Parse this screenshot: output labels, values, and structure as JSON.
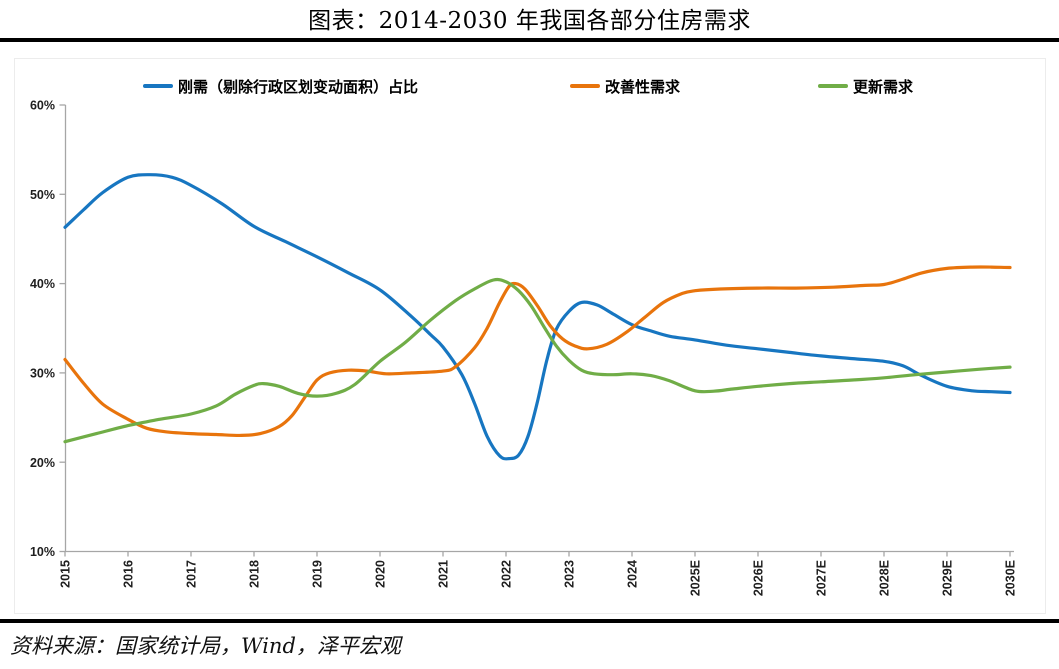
{
  "title": "图表：2014-2030 年我国各部分住房需求",
  "source": "资料来源：国家统计局，Wind，泽平宏观",
  "colors": {
    "blue": "#1776C1",
    "orange": "#E8740C",
    "green": "#70AD47",
    "axis": "#A6A6A6",
    "tick_label": "#1F1F1F",
    "divider": "#000000"
  },
  "chart_data": {
    "type": "line",
    "title": "图表：2014-2030 年我国各部分住房需求",
    "xlabel": "",
    "ylabel": "",
    "ylim": [
      10,
      60
    ],
    "y_tick_labels": [
      "10%",
      "20%",
      "30%",
      "40%",
      "50%",
      "60%"
    ],
    "x_base_year": 2015,
    "x_tick_labels": [
      "2015",
      "2016",
      "2017",
      "2018",
      "2019",
      "2020",
      "2021",
      "2022",
      "2023",
      "2024",
      "2025E",
      "2026E",
      "2027E",
      "2028E",
      "2029E",
      "2030E"
    ],
    "grid": false,
    "legend_position": "top",
    "unit": "percent",
    "series": [
      {
        "name": "刚需（剔除行政区划变动面积）占比",
        "color": "#1776C1",
        "points": [
          [
            0,
            46.3
          ],
          [
            0.3,
            48.3
          ],
          [
            0.6,
            50.2
          ],
          [
            1,
            51.9
          ],
          [
            1.35,
            52.2
          ],
          [
            1.7,
            51.9
          ],
          [
            2,
            51.0
          ],
          [
            2.5,
            48.9
          ],
          [
            3,
            46.4
          ],
          [
            3.5,
            44.7
          ],
          [
            4,
            43.0
          ],
          [
            4.5,
            41.2
          ],
          [
            5,
            39.3
          ],
          [
            5.5,
            36.3
          ],
          [
            5.8,
            34.3
          ],
          [
            6,
            32.9
          ],
          [
            6.3,
            29.8
          ],
          [
            6.5,
            26.6
          ],
          [
            6.7,
            22.9
          ],
          [
            6.9,
            20.7
          ],
          [
            7.05,
            20.4
          ],
          [
            7.2,
            20.8
          ],
          [
            7.35,
            22.9
          ],
          [
            7.5,
            26.8
          ],
          [
            7.65,
            31.5
          ],
          [
            7.8,
            34.9
          ],
          [
            8,
            36.9
          ],
          [
            8.2,
            37.9
          ],
          [
            8.45,
            37.6
          ],
          [
            8.7,
            36.6
          ],
          [
            9,
            35.4
          ],
          [
            9.3,
            34.7
          ],
          [
            9.6,
            34.1
          ],
          [
            10,
            33.7
          ],
          [
            10.5,
            33.1
          ],
          [
            11,
            32.7
          ],
          [
            11.5,
            32.3
          ],
          [
            12,
            31.9
          ],
          [
            12.5,
            31.6
          ],
          [
            13,
            31.3
          ],
          [
            13.3,
            30.8
          ],
          [
            13.6,
            29.7
          ],
          [
            14,
            28.5
          ],
          [
            14.4,
            28.0
          ],
          [
            14.7,
            27.9
          ],
          [
            15,
            27.8
          ]
        ]
      },
      {
        "name": "改善性需求",
        "color": "#E8740C",
        "points": [
          [
            0,
            31.5
          ],
          [
            0.3,
            28.8
          ],
          [
            0.6,
            26.5
          ],
          [
            1,
            24.8
          ],
          [
            1.3,
            23.8
          ],
          [
            1.6,
            23.4
          ],
          [
            2,
            23.2
          ],
          [
            2.4,
            23.1
          ],
          [
            2.8,
            23.0
          ],
          [
            3.1,
            23.2
          ],
          [
            3.4,
            24.0
          ],
          [
            3.6,
            25.2
          ],
          [
            3.8,
            27.2
          ],
          [
            4,
            29.2
          ],
          [
            4.2,
            30.0
          ],
          [
            4.5,
            30.3
          ],
          [
            4.8,
            30.2
          ],
          [
            5.1,
            29.9
          ],
          [
            5.5,
            30.0
          ],
          [
            6,
            30.2
          ],
          [
            6.2,
            30.7
          ],
          [
            6.5,
            32.8
          ],
          [
            6.7,
            35.0
          ],
          [
            6.9,
            37.9
          ],
          [
            7.05,
            39.7
          ],
          [
            7.15,
            40.0
          ],
          [
            7.3,
            39.4
          ],
          [
            7.5,
            37.5
          ],
          [
            7.7,
            35.3
          ],
          [
            7.9,
            33.8
          ],
          [
            8.1,
            33.0
          ],
          [
            8.3,
            32.7
          ],
          [
            8.6,
            33.2
          ],
          [
            8.9,
            34.5
          ],
          [
            9.2,
            36.2
          ],
          [
            9.5,
            37.9
          ],
          [
            9.8,
            38.9
          ],
          [
            10,
            39.2
          ],
          [
            10.4,
            39.4
          ],
          [
            11,
            39.5
          ],
          [
            11.6,
            39.5
          ],
          [
            12.2,
            39.6
          ],
          [
            12.7,
            39.8
          ],
          [
            13,
            39.9
          ],
          [
            13.3,
            40.5
          ],
          [
            13.6,
            41.2
          ],
          [
            14,
            41.7
          ],
          [
            14.4,
            41.85
          ],
          [
            14.7,
            41.85
          ],
          [
            15,
            41.8
          ]
        ]
      },
      {
        "name": "更新需求",
        "color": "#70AD47",
        "points": [
          [
            0,
            22.3
          ],
          [
            0.5,
            23.2
          ],
          [
            1,
            24.1
          ],
          [
            1.5,
            24.8
          ],
          [
            2,
            25.4
          ],
          [
            2.4,
            26.3
          ],
          [
            2.7,
            27.6
          ],
          [
            3,
            28.6
          ],
          [
            3.15,
            28.8
          ],
          [
            3.4,
            28.5
          ],
          [
            3.7,
            27.7
          ],
          [
            4,
            27.4
          ],
          [
            4.3,
            27.7
          ],
          [
            4.6,
            28.7
          ],
          [
            5,
            31.3
          ],
          [
            5.4,
            33.4
          ],
          [
            5.8,
            35.9
          ],
          [
            6.2,
            38.1
          ],
          [
            6.5,
            39.4
          ],
          [
            6.8,
            40.4
          ],
          [
            7,
            40.2
          ],
          [
            7.2,
            39.2
          ],
          [
            7.4,
            37.5
          ],
          [
            7.6,
            35.2
          ],
          [
            7.8,
            33.0
          ],
          [
            8,
            31.4
          ],
          [
            8.2,
            30.3
          ],
          [
            8.4,
            29.9
          ],
          [
            8.7,
            29.8
          ],
          [
            9,
            29.9
          ],
          [
            9.3,
            29.7
          ],
          [
            9.6,
            29.1
          ],
          [
            10,
            28.0
          ],
          [
            10.3,
            27.95
          ],
          [
            10.6,
            28.2
          ],
          [
            11,
            28.5
          ],
          [
            11.5,
            28.8
          ],
          [
            12,
            29.0
          ],
          [
            12.5,
            29.2
          ],
          [
            13,
            29.45
          ],
          [
            13.5,
            29.8
          ],
          [
            14,
            30.1
          ],
          [
            14.5,
            30.4
          ],
          [
            15,
            30.65
          ]
        ]
      }
    ]
  }
}
